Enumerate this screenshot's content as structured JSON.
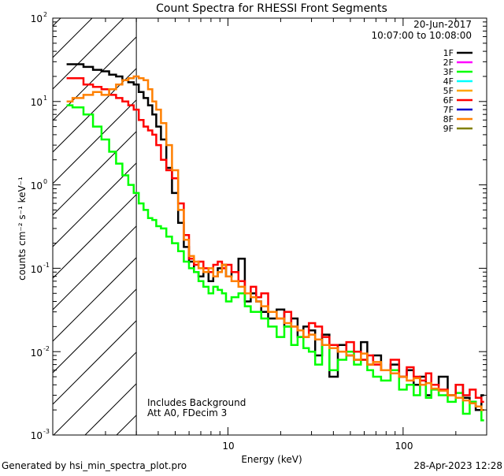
{
  "chart_data": {
    "type": "line",
    "title": "Count Spectra for RHESSI Front Segments",
    "xlabel": "Energy (keV)",
    "ylabel": "counts cm⁻² s⁻¹ keV⁻¹",
    "xscale": "log",
    "yscale": "log",
    "xlim": [
      1.0,
      300.0
    ],
    "ylim": [
      0.001,
      100.0
    ],
    "x_ticks": [
      {
        "value": 10,
        "label": "10"
      },
      {
        "value": 100,
        "label": "100"
      }
    ],
    "y_ticks": [
      {
        "value": 0.001,
        "base": "10",
        "exp": "-3"
      },
      {
        "value": 0.01,
        "base": "10",
        "exp": "-2"
      },
      {
        "value": 0.1,
        "base": "10",
        "exp": "-1"
      },
      {
        "value": 1,
        "base": "10",
        "exp": "0"
      },
      {
        "value": 10,
        "base": "10",
        "exp": "1"
      },
      {
        "value": 100,
        "base": "10",
        "exp": "2"
      }
    ],
    "date": "20-Jun-2017",
    "time_range": "10:07:00 to 10:08:00",
    "legend_position": "top-right",
    "legend": [
      {
        "name": "1F",
        "color": "#000000"
      },
      {
        "name": "2F",
        "color": "#ff00ff"
      },
      {
        "name": "3F",
        "color": "#00ff00"
      },
      {
        "name": "4F",
        "color": "#00ffff"
      },
      {
        "name": "5F",
        "color": "#ffa500"
      },
      {
        "name": "6F",
        "color": "#ff0000"
      },
      {
        "name": "7F",
        "color": "#0000cc"
      },
      {
        "name": "8F",
        "color": "#ff8000"
      },
      {
        "name": "9F",
        "color": "#808000"
      }
    ],
    "shaded_region": {
      "x_from": 1.0,
      "x_to": 3.0,
      "style": "diagonal hatch"
    },
    "annotations": [
      "Includes Background",
      "Att A0, FDecim 3"
    ],
    "series": [
      {
        "name": "1F",
        "color": "#000000",
        "x": [
          1.2,
          1.4,
          1.6,
          1.8,
          2.0,
          2.2,
          2.4,
          2.6,
          2.8,
          3.0,
          3.2,
          3.4,
          3.6,
          3.8,
          4.0,
          4.3,
          4.6,
          5.0,
          5.4,
          5.8,
          6.2,
          6.6,
          7.0,
          7.5,
          8.0,
          8.5,
          9.0,
          9.5,
          10,
          11,
          12,
          13,
          14,
          15,
          16,
          18,
          20,
          22,
          24,
          26,
          28,
          30,
          33,
          36,
          40,
          45,
          50,
          55,
          60,
          65,
          70,
          80,
          90,
          100,
          110,
          120,
          130,
          140,
          150,
          170,
          190,
          210,
          230,
          250,
          270,
          290
        ],
        "y": [
          28,
          28,
          26,
          24,
          23,
          21,
          20,
          18,
          17,
          16,
          13,
          11,
          9,
          7,
          5,
          3.5,
          1.6,
          0.8,
          0.35,
          0.18,
          0.12,
          0.09,
          0.08,
          0.09,
          0.07,
          0.08,
          0.1,
          0.11,
          0.08,
          0.09,
          0.13,
          0.04,
          0.05,
          0.04,
          0.03,
          0.025,
          0.032,
          0.02,
          0.025,
          0.015,
          0.02,
          0.018,
          0.009,
          0.016,
          0.005,
          0.012,
          0.009,
          0.008,
          0.013,
          0.007,
          0.009,
          0.006,
          0.007,
          0.005,
          0.006,
          0.004,
          0.005,
          0.003,
          0.004,
          0.005,
          0.003,
          0.004,
          0.0028,
          0.0025,
          0.002,
          0.003
        ]
      },
      {
        "name": "3F",
        "color": "#00ff00",
        "x": [
          1.2,
          1.4,
          1.6,
          1.8,
          2.0,
          2.2,
          2.4,
          2.6,
          2.8,
          3.0,
          3.2,
          3.4,
          3.6,
          3.8,
          4.0,
          4.3,
          4.6,
          5.0,
          5.4,
          5.8,
          6.2,
          6.6,
          7.0,
          7.5,
          8.0,
          8.5,
          9.0,
          9.5,
          10,
          11,
          12,
          13,
          14,
          15,
          16,
          18,
          20,
          22,
          24,
          26,
          28,
          30,
          33,
          36,
          40,
          45,
          50,
          55,
          60,
          65,
          70,
          80,
          90,
          100,
          110,
          120,
          130,
          140,
          150,
          170,
          190,
          210,
          230,
          250,
          270,
          290
        ],
        "y": [
          9,
          8.5,
          7,
          5,
          3.5,
          2.5,
          1.8,
          1.3,
          1.0,
          0.8,
          0.6,
          0.5,
          0.4,
          0.38,
          0.32,
          0.3,
          0.24,
          0.2,
          0.16,
          0.12,
          0.1,
          0.09,
          0.07,
          0.06,
          0.05,
          0.06,
          0.055,
          0.05,
          0.04,
          0.045,
          0.05,
          0.035,
          0.03,
          0.03,
          0.025,
          0.02,
          0.015,
          0.02,
          0.012,
          0.015,
          0.011,
          0.01,
          0.007,
          0.012,
          0.006,
          0.008,
          0.01,
          0.007,
          0.008,
          0.006,
          0.005,
          0.0045,
          0.006,
          0.0035,
          0.004,
          0.003,
          0.004,
          0.0028,
          0.0035,
          0.003,
          0.0025,
          0.0032,
          0.0018,
          0.0025,
          0.0022,
          0.0015
        ]
      },
      {
        "name": "6F",
        "color": "#ff0000",
        "x": [
          1.2,
          1.4,
          1.6,
          1.8,
          2.0,
          2.2,
          2.4,
          2.6,
          2.8,
          3.0,
          3.2,
          3.4,
          3.6,
          3.8,
          4.0,
          4.3,
          4.6,
          5.0,
          5.4,
          5.8,
          6.2,
          6.6,
          7.0,
          7.5,
          8.0,
          8.5,
          9.0,
          9.5,
          10,
          11,
          12,
          13,
          14,
          15,
          16,
          18,
          20,
          22,
          24,
          26,
          28,
          30,
          33,
          36,
          40,
          45,
          50,
          55,
          60,
          65,
          70,
          80,
          90,
          100,
          110,
          120,
          130,
          140,
          150,
          170,
          190,
          210,
          230,
          250,
          270,
          290
        ],
        "y": [
          19,
          19,
          16,
          15,
          14,
          12,
          11,
          10,
          9,
          8,
          6,
          5,
          4.5,
          4,
          3,
          2,
          1.5,
          1.2,
          0.6,
          0.25,
          0.13,
          0.11,
          0.12,
          0.1,
          0.09,
          0.11,
          0.12,
          0.1,
          0.11,
          0.09,
          0.07,
          0.05,
          0.06,
          0.045,
          0.05,
          0.03,
          0.025,
          0.03,
          0.02,
          0.018,
          0.015,
          0.022,
          0.02,
          0.015,
          0.012,
          0.01,
          0.013,
          0.01,
          0.008,
          0.009,
          0.007,
          0.006,
          0.008,
          0.005,
          0.0065,
          0.005,
          0.0045,
          0.0055,
          0.004,
          0.0035,
          0.003,
          0.004,
          0.003,
          0.0035,
          0.0028,
          0.0025
        ]
      },
      {
        "name": "8F",
        "color": "#ff8000",
        "x": [
          1.2,
          1.4,
          1.6,
          1.8,
          2.0,
          2.2,
          2.4,
          2.6,
          2.8,
          3.0,
          3.2,
          3.4,
          3.6,
          3.8,
          4.0,
          4.3,
          4.6,
          5.0,
          5.4,
          5.8,
          6.2,
          6.6,
          7.0,
          7.5,
          8.0,
          8.5,
          9.0,
          9.5,
          10,
          11,
          12,
          13,
          14,
          15,
          16,
          18,
          20,
          22,
          24,
          26,
          28,
          30,
          33,
          36,
          40,
          45,
          50,
          55,
          60,
          65,
          70,
          80,
          90,
          100,
          110,
          120,
          130,
          140,
          150,
          170,
          190,
          210,
          230,
          250,
          270,
          290
        ],
        "y": [
          10,
          11,
          12,
          13,
          12,
          14,
          16,
          18,
          19,
          20,
          19,
          18,
          14,
          10,
          8,
          5.5,
          3,
          1.5,
          0.5,
          0.22,
          0.14,
          0.12,
          0.1,
          0.09,
          0.1,
          0.08,
          0.09,
          0.11,
          0.08,
          0.07,
          0.06,
          0.05,
          0.045,
          0.04,
          0.035,
          0.03,
          0.025,
          0.022,
          0.02,
          0.018,
          0.015,
          0.016,
          0.014,
          0.012,
          0.011,
          0.01,
          0.009,
          0.008,
          0.0095,
          0.007,
          0.0075,
          0.006,
          0.0055,
          0.005,
          0.0045,
          0.0048,
          0.004,
          0.0042,
          0.0036,
          0.0034,
          0.003,
          0.0028,
          0.0026,
          0.0024,
          0.0022,
          0.002
        ]
      }
    ]
  },
  "footer": {
    "generated_by": "Generated by hsi_min_spectra_plot.pro",
    "timestamp": "28-Apr-2023 12:28"
  }
}
